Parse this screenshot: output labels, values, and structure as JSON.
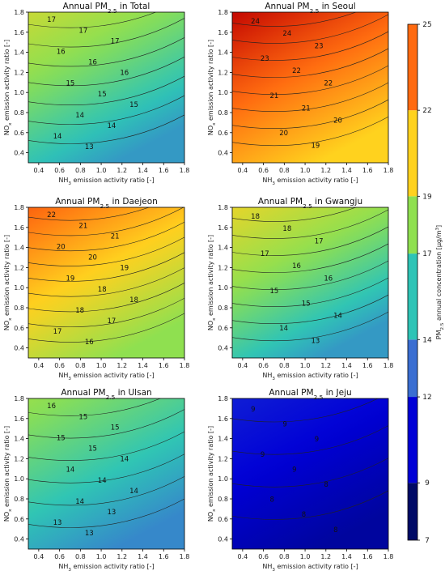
{
  "figure": {
    "colorbar_label": "PM2.5 annual concentration [μg/m³]",
    "colorbar_ticks": [
      7,
      9,
      12,
      14,
      17,
      19,
      22,
      25
    ],
    "colorbar_colors": [
      "#000a66",
      "#0000d6",
      "#3a6ed2",
      "#2ec4b6",
      "#8fe050",
      "#ffd21e",
      "#ff6a10",
      "#c00000"
    ]
  },
  "chart_data": [
    {
      "type": "contour",
      "title": "Annual PM2.5 in Total",
      "xlabel": "NH3 emission activity ratio [-]",
      "ylabel": "NOx emission activity ratio [-]",
      "xlim": [
        0.3,
        1.8
      ],
      "ylim": [
        0.3,
        1.8
      ],
      "xticks": [
        0.4,
        0.6,
        0.8,
        1.0,
        1.2,
        1.4,
        1.6,
        1.8
      ],
      "yticks": [
        0.4,
        0.6,
        0.8,
        1.0,
        1.2,
        1.4,
        1.6,
        1.8
      ],
      "fill_range": [
        13.0,
        17.5
      ],
      "contour_levels": [
        13,
        14,
        15,
        16,
        17
      ],
      "contour_labels": [
        "17",
        "17",
        "17",
        "16",
        "16",
        "16",
        "15",
        "15",
        "15",
        "14",
        "14",
        "14",
        "13"
      ]
    },
    {
      "type": "contour",
      "title": "Annual PM2.5 in Seoul",
      "xlabel": "NH3 emission activity ratio [-]",
      "ylabel": "NOx emission activity ratio [-]",
      "xlim": [
        0.3,
        1.8
      ],
      "ylim": [
        0.3,
        1.8
      ],
      "xticks": [
        0.4,
        0.6,
        0.8,
        1.0,
        1.2,
        1.4,
        1.6,
        1.8
      ],
      "yticks": [
        0.4,
        0.6,
        0.8,
        1.0,
        1.2,
        1.4,
        1.6,
        1.8
      ],
      "fill_range": [
        19.0,
        24.8
      ],
      "contour_levels": [
        19,
        20,
        21,
        22,
        23,
        24
      ],
      "contour_labels": [
        "24",
        "24",
        "23",
        "23",
        "22",
        "22",
        "21",
        "21",
        "20",
        "20",
        "19"
      ]
    },
    {
      "type": "contour",
      "title": "Annual PM2.5 in Daejeon",
      "xlabel": "NH3 emission activity ratio [-]",
      "ylabel": "NOx emission activity ratio [-]",
      "xlim": [
        0.3,
        1.8
      ],
      "ylim": [
        0.3,
        1.8
      ],
      "xticks": [
        0.4,
        0.6,
        0.8,
        1.0,
        1.2,
        1.4,
        1.6,
        1.8
      ],
      "yticks": [
        0.4,
        0.6,
        0.8,
        1.0,
        1.2,
        1.4,
        1.6,
        1.8
      ],
      "fill_range": [
        16.0,
        22.2
      ],
      "contour_levels": [
        16,
        17,
        18,
        19,
        20,
        21,
        22
      ],
      "contour_labels": [
        "22",
        "21",
        "21",
        "20",
        "20",
        "19",
        "19",
        "18",
        "18",
        "18",
        "17",
        "17",
        "16"
      ]
    },
    {
      "type": "contour",
      "title": "Annual PM2.5 in Gwangju",
      "xlabel": "NH3 emission activity ratio [-]",
      "ylabel": "NOx emission activity ratio [-]",
      "xlim": [
        0.3,
        1.8
      ],
      "ylim": [
        0.3,
        1.8
      ],
      "xticks": [
        0.4,
        0.6,
        0.8,
        1.0,
        1.2,
        1.4,
        1.6,
        1.8
      ],
      "yticks": [
        0.4,
        0.6,
        0.8,
        1.0,
        1.2,
        1.4,
        1.6,
        1.8
      ],
      "fill_range": [
        13.0,
        18.3
      ],
      "contour_levels": [
        13,
        14,
        15,
        16,
        17,
        18
      ],
      "contour_labels": [
        "18",
        "18",
        "17",
        "17",
        "16",
        "16",
        "15",
        "15",
        "14",
        "14",
        "13"
      ]
    },
    {
      "type": "contour",
      "title": "Annual PM2.5 in Ulsan",
      "xlabel": "NH3 emission activity ratio [-]",
      "ylabel": "NOx emission activity ratio [-]",
      "xlim": [
        0.3,
        1.8
      ],
      "ylim": [
        0.3,
        1.8
      ],
      "xticks": [
        0.4,
        0.6,
        0.8,
        1.0,
        1.2,
        1.4,
        1.6,
        1.8
      ],
      "yticks": [
        0.4,
        0.6,
        0.8,
        1.0,
        1.2,
        1.4,
        1.6,
        1.8
      ],
      "fill_range": [
        12.6,
        16.2
      ],
      "contour_levels": [
        13,
        14,
        15,
        16
      ],
      "contour_labels": [
        "16",
        "15",
        "15",
        "15",
        "15",
        "14",
        "14",
        "14",
        "14",
        "14",
        "13",
        "13",
        "13"
      ]
    },
    {
      "type": "contour",
      "title": "Annual PM2.5 in Jeju",
      "xlabel": "NH3 emission activity ratio [-]",
      "ylabel": "NOx emission activity ratio [-]",
      "xlim": [
        0.3,
        1.8
      ],
      "ylim": [
        0.3,
        1.8
      ],
      "xticks": [
        0.4,
        0.6,
        0.8,
        1.0,
        1.2,
        1.4,
        1.6,
        1.8
      ],
      "yticks": [
        0.4,
        0.6,
        0.8,
        1.0,
        1.2,
        1.4,
        1.6,
        1.8
      ],
      "fill_range": [
        8.0,
        9.8
      ],
      "contour_levels": [
        8,
        9
      ],
      "contour_labels": [
        "9",
        "9",
        "9",
        "9",
        "9",
        "8",
        "8",
        "8",
        "8"
      ]
    }
  ]
}
